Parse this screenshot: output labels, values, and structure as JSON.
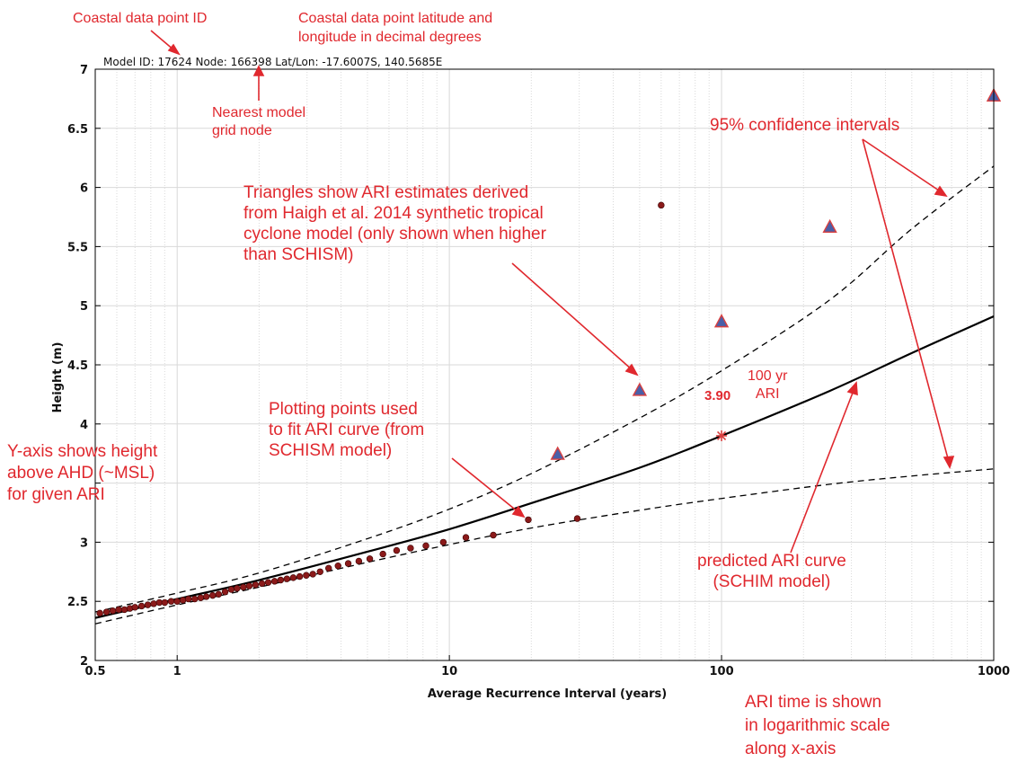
{
  "header": {
    "text": "Model ID: 17624 Node: 166398  Lat/Lon: -17.6007S, 140.5685E"
  },
  "annotations": {
    "point_id": "Coastal data point ID",
    "latlon_1": "Coastal data point latitude and",
    "latlon_2": "longitude in decimal degrees",
    "node_1": "Nearest model",
    "node_2": "grid node",
    "ci": "95% confidence intervals",
    "triangles_1": "Triangles show ARI estimates derived",
    "triangles_2": "from Haigh et al. 2014 synthetic tropical",
    "triangles_3": "cyclone model (only shown when higher",
    "triangles_4": "than SCHISM)",
    "ari100_1": "100 yr",
    "ari100_2": "ARI",
    "ari100_value": "3.90",
    "plotting_1": "Plotting points used",
    "plotting_2": "to fit ARI curve (from",
    "plotting_3": "SCHISM model)",
    "yaxis_1": "Y-axis shows height",
    "yaxis_2": "above AHD (~MSL)",
    "yaxis_3": "for given ARI",
    "predicted_1": "predicted ARI curve",
    "predicted_2": "(SCHIM model)",
    "logscale_1": "ARI time is shown",
    "logscale_2": "in logarithmic scale",
    "logscale_3": "along x-axis"
  },
  "colors": {
    "annotation": "#e0282e",
    "point_fill": "#8b1a1a",
    "triangle_fill": "#4a5fa8",
    "triangle_outline": "#d94040",
    "curve": "#000000",
    "grid": "#d9d9d9"
  },
  "chart_data": {
    "type": "line",
    "title": "",
    "xlabel": "Average Recurrence Interval (years)",
    "ylabel": "Height (m)",
    "xscale": "log",
    "xlim": [
      0.5,
      1000
    ],
    "ylim": [
      2,
      7
    ],
    "xticks": [
      0.5,
      1,
      10,
      100,
      1000
    ],
    "xtick_labels": [
      "0.5",
      "1",
      "10",
      "100",
      "1000"
    ],
    "yticks": [
      2,
      2.5,
      3,
      3.5,
      4,
      4.5,
      5,
      5.5,
      6,
      6.5,
      7
    ],
    "ytick_labels": [
      "2",
      "2.5",
      "3",
      "",
      "4",
      "4.5",
      "5",
      "5.5",
      "6",
      "6.5",
      "7"
    ],
    "grid": true,
    "series": [
      {
        "kind": "line",
        "style": "solid",
        "x": [
          0.5,
          1,
          2,
          5,
          10,
          20,
          50,
          100,
          250,
          500,
          1000
        ],
        "y": [
          2.36,
          2.52,
          2.68,
          2.92,
          3.11,
          3.33,
          3.63,
          3.9,
          4.28,
          4.6,
          4.91
        ]
      },
      {
        "kind": "line",
        "style": "dashed",
        "x": [
          0.5,
          1,
          2,
          5,
          10,
          20,
          50,
          100,
          250,
          500,
          1000
        ],
        "y": [
          2.41,
          2.57,
          2.74,
          3.03,
          3.28,
          3.58,
          4.05,
          4.45,
          5.05,
          5.65,
          6.18
        ]
      },
      {
        "kind": "line",
        "style": "dashed",
        "x": [
          0.5,
          1,
          2,
          5,
          10,
          20,
          50,
          100,
          250,
          500,
          1000
        ],
        "y": [
          2.31,
          2.47,
          2.62,
          2.83,
          2.98,
          3.12,
          3.27,
          3.37,
          3.49,
          3.56,
          3.62
        ]
      },
      {
        "kind": "scatter",
        "marker": "circle",
        "x": [
          0.52,
          0.55,
          0.58,
          0.61,
          0.64,
          0.67,
          0.7,
          0.74,
          0.78,
          0.82,
          0.86,
          0.9,
          0.95,
          1.0,
          1.05,
          1.1,
          1.16,
          1.22,
          1.28,
          1.35,
          1.42,
          1.5,
          1.58,
          1.66,
          1.75,
          1.84,
          1.94,
          2.05,
          2.16,
          2.28,
          2.4,
          2.53,
          2.67,
          2.82,
          2.98,
          3.15,
          3.35,
          3.6,
          3.9,
          4.25,
          4.65,
          5.1,
          5.7,
          6.4,
          7.2,
          8.2,
          9.5,
          11.5,
          14.5,
          19.5,
          29.5,
          60
        ],
        "y": [
          2.4,
          2.41,
          2.42,
          2.43,
          2.43,
          2.44,
          2.45,
          2.46,
          2.47,
          2.48,
          2.49,
          2.49,
          2.5,
          2.5,
          2.51,
          2.52,
          2.52,
          2.53,
          2.54,
          2.55,
          2.56,
          2.58,
          2.6,
          2.61,
          2.62,
          2.63,
          2.64,
          2.65,
          2.66,
          2.67,
          2.68,
          2.69,
          2.7,
          2.71,
          2.72,
          2.73,
          2.75,
          2.78,
          2.8,
          2.82,
          2.84,
          2.86,
          2.9,
          2.93,
          2.95,
          2.97,
          3.0,
          3.04,
          3.06,
          3.19,
          3.2,
          5.85
        ]
      },
      {
        "kind": "scatter",
        "marker": "triangle",
        "x": [
          25,
          50,
          100,
          250,
          1000
        ],
        "y": [
          3.74,
          4.28,
          4.86,
          5.66,
          6.77
        ]
      },
      {
        "kind": "marker",
        "marker": "asterisk",
        "x": [
          100
        ],
        "y": [
          3.9
        ]
      }
    ]
  }
}
